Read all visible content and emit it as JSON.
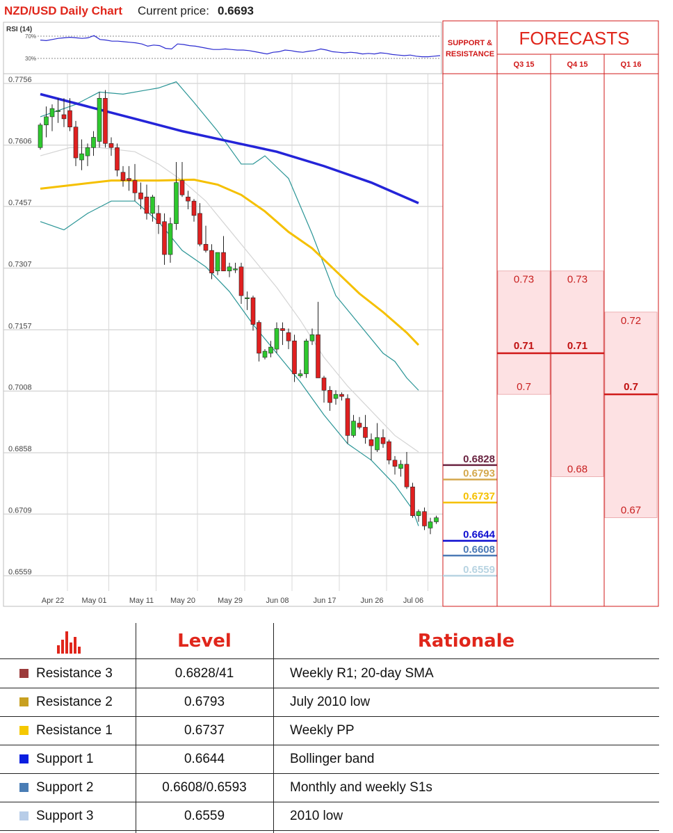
{
  "chart_data": {
    "type": "candlestick",
    "title": "NZD/USD Daily Chart",
    "price_label": "Current price:",
    "price_value": "0.6693",
    "y_ticks": [
      "0.7756",
      "0.7606",
      "0.7457",
      "0.7307",
      "0.7157",
      "0.7008",
      "0.6858",
      "0.6709",
      "0.6559"
    ],
    "y_tick_values": [
      0.7756,
      0.7606,
      0.7457,
      0.7307,
      0.7157,
      0.7008,
      0.6858,
      0.6709,
      0.6559
    ],
    "ylim": [
      0.6535,
      0.7775
    ],
    "x_ticks": [
      "Apr 22",
      "May 01",
      "May 11",
      "May 20",
      "May 29",
      "Jun 08",
      "Jun 17",
      "Jun 26",
      "Jul 06"
    ],
    "x_tick_index": [
      2,
      9,
      17,
      24,
      32,
      40,
      48,
      56,
      63
    ],
    "candles": [
      [
        0.76,
        0.766,
        0.7595,
        0.7655
      ],
      [
        0.7655,
        0.77,
        0.7625,
        0.7675
      ],
      [
        0.7675,
        0.7705,
        0.764,
        0.7695
      ],
      [
        0.769,
        0.772,
        0.766,
        0.769
      ],
      [
        0.768,
        0.772,
        0.765,
        0.767
      ],
      [
        0.769,
        0.772,
        0.764,
        0.765
      ],
      [
        0.765,
        0.7665,
        0.7555,
        0.7575
      ],
      [
        0.757,
        0.762,
        0.7545,
        0.7585
      ],
      [
        0.758,
        0.761,
        0.7555,
        0.76
      ],
      [
        0.76,
        0.764,
        0.758,
        0.7625
      ],
      [
        0.7615,
        0.7735,
        0.76,
        0.772
      ],
      [
        0.772,
        0.774,
        0.76,
        0.761
      ],
      [
        0.761,
        0.7625,
        0.758,
        0.76
      ],
      [
        0.76,
        0.761,
        0.753,
        0.7545
      ],
      [
        0.754,
        0.7555,
        0.7505,
        0.752
      ],
      [
        0.7525,
        0.7555,
        0.7495,
        0.752
      ],
      [
        0.752,
        0.756,
        0.747,
        0.749
      ],
      [
        0.749,
        0.7515,
        0.745,
        0.7475
      ],
      [
        0.748,
        0.751,
        0.7425,
        0.744
      ],
      [
        0.744,
        0.7485,
        0.742,
        0.748
      ],
      [
        0.744,
        0.746,
        0.739,
        0.7415
      ],
      [
        0.742,
        0.744,
        0.7315,
        0.734
      ],
      [
        0.734,
        0.743,
        0.732,
        0.7415
      ],
      [
        0.7415,
        0.7565,
        0.74,
        0.7515
      ],
      [
        0.752,
        0.7565,
        0.748,
        0.7485
      ],
      [
        0.748,
        0.7495,
        0.745,
        0.747
      ],
      [
        0.747,
        0.7475,
        0.742,
        0.7435
      ],
      [
        0.744,
        0.7465,
        0.736,
        0.7365
      ],
      [
        0.7365,
        0.741,
        0.7345,
        0.735
      ],
      [
        0.735,
        0.7365,
        0.728,
        0.7295
      ],
      [
        0.73,
        0.734,
        0.729,
        0.7345
      ],
      [
        0.7345,
        0.7385,
        0.73,
        0.73
      ],
      [
        0.73,
        0.732,
        0.7285,
        0.731
      ],
      [
        0.7305,
        0.732,
        0.7295,
        0.7305
      ],
      [
        0.731,
        0.732,
        0.722,
        0.724
      ],
      [
        0.7235,
        0.725,
        0.7205,
        0.7235
      ],
      [
        0.7235,
        0.724,
        0.7155,
        0.717
      ],
      [
        0.7175,
        0.718,
        0.708,
        0.71
      ],
      [
        0.709,
        0.711,
        0.7085,
        0.7105
      ],
      [
        0.71,
        0.713,
        0.709,
        0.7115
      ],
      [
        0.711,
        0.7175,
        0.71,
        0.716
      ],
      [
        0.716,
        0.7175,
        0.712,
        0.7155
      ],
      [
        0.715,
        0.716,
        0.711,
        0.713
      ],
      [
        0.713,
        0.7145,
        0.703,
        0.705
      ],
      [
        0.7045,
        0.706,
        0.704,
        0.705
      ],
      [
        0.705,
        0.7135,
        0.704,
        0.713
      ],
      [
        0.713,
        0.716,
        0.712,
        0.7145
      ],
      [
        0.7145,
        0.7225,
        0.704,
        0.704
      ],
      [
        0.704,
        0.7045,
        0.698,
        0.701
      ],
      [
        0.701,
        0.702,
        0.696,
        0.698
      ],
      [
        0.699,
        0.701,
        0.6975,
        0.7
      ],
      [
        0.7,
        0.7005,
        0.6985,
        0.6995
      ],
      [
        0.699,
        0.7,
        0.688,
        0.69
      ],
      [
        0.69,
        0.695,
        0.6895,
        0.6935
      ],
      [
        0.693,
        0.6945,
        0.6915,
        0.692
      ],
      [
        0.692,
        0.695,
        0.688,
        0.6895
      ],
      [
        0.689,
        0.6905,
        0.684,
        0.6875
      ],
      [
        0.6865,
        0.693,
        0.686,
        0.6895
      ],
      [
        0.6895,
        0.6915,
        0.687,
        0.688
      ],
      [
        0.6885,
        0.689,
        0.683,
        0.684
      ],
      [
        0.684,
        0.685,
        0.6805,
        0.6825
      ],
      [
        0.682,
        0.684,
        0.68,
        0.683
      ],
      [
        0.683,
        0.686,
        0.677,
        0.6775
      ],
      [
        0.6775,
        0.6785,
        0.67,
        0.6705
      ],
      [
        0.6705,
        0.672,
        0.669,
        0.6715
      ],
      [
        0.6715,
        0.6725,
        0.667,
        0.668
      ],
      [
        0.6675,
        0.67,
        0.666,
        0.669
      ],
      [
        0.669,
        0.6705,
        0.6685,
        0.67
      ]
    ],
    "series": [
      {
        "name": "",
        "color": "#2424d8",
        "values": [
          [
            0,
            0.773
          ],
          [
            8,
            0.77
          ],
          [
            16,
            0.767
          ],
          [
            24,
            0.764
          ],
          [
            32,
            0.7615
          ],
          [
            40,
            0.759
          ],
          [
            48,
            0.7555
          ],
          [
            56,
            0.7515
          ],
          [
            64,
            0.7465
          ]
        ]
      },
      {
        "name": "",
        "color": "#f5c000",
        "values": [
          [
            0,
            0.75
          ],
          [
            6,
            0.751
          ],
          [
            12,
            0.752
          ],
          [
            20,
            0.752
          ],
          [
            26,
            0.7522
          ],
          [
            30,
            0.751
          ],
          [
            34,
            0.7485
          ],
          [
            38,
            0.7445
          ],
          [
            42,
            0.7395
          ],
          [
            46,
            0.7355
          ],
          [
            50,
            0.73
          ],
          [
            54,
            0.7245
          ],
          [
            58,
            0.72
          ],
          [
            62,
            0.715
          ],
          [
            64,
            0.712
          ]
        ]
      },
      {
        "name": "",
        "color": "#2a9596",
        "values": [
          [
            0,
            0.7675
          ],
          [
            6,
            0.7705
          ],
          [
            10,
            0.7735
          ],
          [
            14,
            0.773
          ],
          [
            18,
            0.774
          ],
          [
            20,
            0.7745
          ],
          [
            23,
            0.776
          ],
          [
            26,
            0.771
          ],
          [
            30,
            0.764
          ],
          [
            34,
            0.756
          ],
          [
            36,
            0.756
          ],
          [
            38,
            0.758
          ],
          [
            42,
            0.7525
          ],
          [
            46,
            0.739
          ],
          [
            50,
            0.724
          ],
          [
            54,
            0.717
          ],
          [
            58,
            0.71
          ],
          [
            60,
            0.708
          ],
          [
            62,
            0.704
          ],
          [
            64,
            0.701
          ]
        ]
      },
      {
        "name": "",
        "color": "#2a9596",
        "values": [
          [
            0,
            0.742
          ],
          [
            4,
            0.74
          ],
          [
            8,
            0.744
          ],
          [
            12,
            0.747
          ],
          [
            16,
            0.747
          ],
          [
            20,
            0.742
          ],
          [
            24,
            0.735
          ],
          [
            28,
            0.731
          ],
          [
            32,
            0.725
          ],
          [
            36,
            0.717
          ],
          [
            40,
            0.71
          ],
          [
            44,
            0.703
          ],
          [
            48,
            0.695
          ],
          [
            52,
            0.688
          ],
          [
            56,
            0.684
          ],
          [
            60,
            0.678
          ],
          [
            63,
            0.672
          ],
          [
            64,
            0.668
          ]
        ]
      },
      {
        "name": "",
        "color": "#d4d4d4",
        "values": [
          [
            0,
            0.758
          ],
          [
            5,
            0.76
          ],
          [
            10,
            0.76
          ],
          [
            16,
            0.759
          ],
          [
            20,
            0.756
          ],
          [
            24,
            0.752
          ],
          [
            28,
            0.747
          ],
          [
            32,
            0.74
          ],
          [
            36,
            0.733
          ],
          [
            40,
            0.726
          ],
          [
            44,
            0.718
          ],
          [
            48,
            0.709
          ],
          [
            52,
            0.702
          ],
          [
            56,
            0.696
          ],
          [
            60,
            0.69
          ],
          [
            64,
            0.686
          ]
        ]
      }
    ],
    "rsi": {
      "label": "RSI (14)",
      "levels": [
        "70%",
        "30%"
      ],
      "values": [
        63,
        62,
        64,
        66,
        67,
        68,
        67,
        66,
        67,
        71,
        64,
        63,
        61,
        61,
        60,
        59,
        58,
        56,
        52,
        54,
        53,
        48,
        47,
        56,
        55,
        53,
        52,
        50,
        48,
        46,
        46,
        47,
        46,
        45,
        45,
        44,
        42,
        40,
        38,
        41,
        42,
        45,
        44,
        42,
        41,
        43,
        44,
        47,
        45,
        42,
        41,
        40,
        41,
        40,
        38,
        39,
        38,
        40,
        39,
        37,
        36,
        35,
        36,
        34,
        33,
        33,
        34,
        35
      ]
    },
    "support_resistance": {
      "header": [
        "SUPPORT &",
        "RESISTANCE"
      ],
      "levels": [
        {
          "label": "0.6828",
          "value": 0.6828,
          "color": "#6a2340"
        },
        {
          "label": "0.6793",
          "value": 0.6793,
          "color": "#d4a84d"
        },
        {
          "label": "0.6737",
          "value": 0.6737,
          "color": "#f5c000"
        },
        {
          "label": "0.6644",
          "value": 0.6644,
          "color": "#0b0bd0"
        },
        {
          "label": "0.6608",
          "value": 0.6608,
          "color": "#4b7ab6"
        },
        {
          "label": "0.6559",
          "value": 0.6559,
          "color": "#b8d4e2"
        }
      ]
    },
    "forecasts": {
      "title": "FORECASTS",
      "columns": [
        {
          "label": "Q3 15",
          "high": 0.73,
          "high_label": "0.73",
          "mid": 0.71,
          "mid_label": "0.71",
          "low": 0.7,
          "low_label": "0.7"
        },
        {
          "label": "Q4 15",
          "high": 0.73,
          "high_label": "0.73",
          "mid": 0.71,
          "mid_label": "0.71",
          "low": 0.68,
          "low_label": "0.68"
        },
        {
          "label": "Q1 16",
          "high": 0.72,
          "high_label": "0.72",
          "mid": 0.7,
          "mid_label": "0.7",
          "low": 0.67,
          "low_label": "0.67"
        }
      ]
    }
  },
  "table": {
    "header_level": "Level",
    "header_rationale": "Rationale",
    "rows": [
      {
        "name": "Resistance 3",
        "level": "0.6828/41",
        "rationale": "Weekly R1; 20-day SMA",
        "color": "#9c3a3a"
      },
      {
        "name": "Resistance 2",
        "level": "0.6793",
        "rationale": "July 2010 low",
        "color": "#c8a020"
      },
      {
        "name": "Resistance 1",
        "level": "0.6737",
        "rationale": "Weekly PP",
        "color": "#f5c800"
      },
      {
        "name": "Support 1",
        "level": "0.6644",
        "rationale": "Bollinger band",
        "color": "#0a1ee0"
      },
      {
        "name": "Support 2",
        "level": "0.6608/0.6593",
        "rationale": "Monthly and weekly S1s",
        "color": "#4a7db5"
      },
      {
        "name": "Support 3",
        "level": "0.6559",
        "rationale": "2010 low",
        "color": "#b8cde8"
      }
    ]
  }
}
